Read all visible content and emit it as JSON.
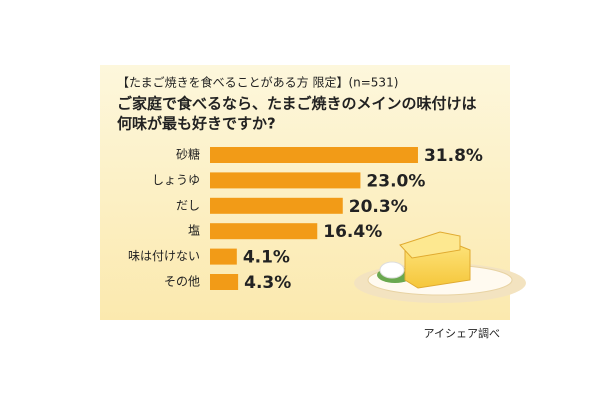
{
  "chart_data": {
    "type": "bar",
    "orientation": "horizontal",
    "subtitle": "【たまご焼きを食べることがある方 限定】(n=531)",
    "title_lines": [
      "ご家庭で食べるなら、たまご焼きのメインの味付けは",
      "何味が最も好きですか?"
    ],
    "categories": [
      "砂糖",
      "しょうゆ",
      "だし",
      "塩",
      "味は付けない",
      "その他"
    ],
    "values": [
      31.8,
      23.0,
      20.3,
      16.4,
      4.1,
      4.3
    ],
    "value_labels": [
      "31.8%",
      "23.0%",
      "20.3%",
      "16.4%",
      "4.1%",
      "4.3%"
    ],
    "color": "#f29b17",
    "source": "アイシェア調べ"
  }
}
